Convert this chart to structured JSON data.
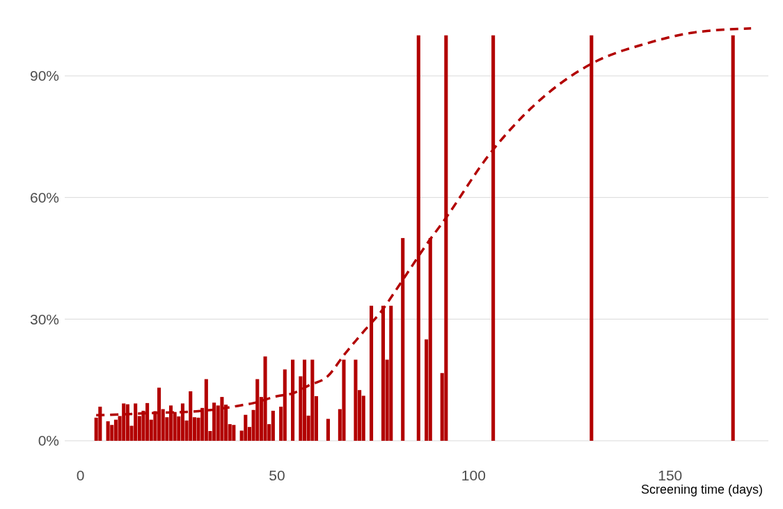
{
  "chart_data": {
    "type": "bar",
    "xlabel": "Screening time (days)",
    "xlim": [
      -4,
      175
    ],
    "xticks": [
      0,
      50,
      100,
      150
    ],
    "ylim": [
      0,
      107
    ],
    "yticks": [
      {
        "value": 0,
        "label": "0%"
      },
      {
        "value": 30,
        "label": "30%"
      },
      {
        "value": 60,
        "label": "60%"
      },
      {
        "value": 90,
        "label": "90%"
      }
    ],
    "grid": "y",
    "series": [
      {
        "color": "#b20000",
        "x": [
          4,
          5,
          7,
          8,
          9,
          10,
          11,
          12,
          13,
          14,
          15,
          16,
          17,
          18,
          19,
          20,
          21,
          22,
          23,
          24,
          25,
          26,
          27,
          28,
          29,
          30,
          31,
          32,
          33,
          34,
          35,
          36,
          37,
          38,
          39,
          41,
          42,
          43,
          44,
          45,
          46,
          47,
          48,
          49,
          51,
          52,
          54,
          56,
          57,
          58,
          59,
          60,
          63,
          66,
          67,
          70,
          71,
          72,
          74,
          77,
          78,
          79,
          82,
          86,
          88,
          89,
          92,
          93,
          105,
          130,
          166
        ],
        "values": [
          5.7,
          8.4,
          4.8,
          3.9,
          5.2,
          6.1,
          9.2,
          9.0,
          3.7,
          9.2,
          6.1,
          7.4,
          9.3,
          5.2,
          7.3,
          13.1,
          7.8,
          5.8,
          8.7,
          7.1,
          6.0,
          9.2,
          5.0,
          12.2,
          5.8,
          5.7,
          8.1,
          15.2,
          2.4,
          9.4,
          8.7,
          10.8,
          8.9,
          4.1,
          3.9,
          2.5,
          6.4,
          3.4,
          7.6,
          15.2,
          10.8,
          20.8,
          4.1,
          7.4,
          8.4,
          17.6,
          20,
          15.9,
          20,
          6.2,
          20,
          11.0,
          5.4,
          7.8,
          20,
          20,
          12.5,
          11.1,
          33.3,
          33.3,
          20,
          33.3,
          50,
          100,
          25,
          50,
          16.7,
          100,
          100,
          100,
          100
        ]
      },
      {
        "type": "line",
        "color": "#b20000",
        "line_style": "dashed",
        "marker": "none",
        "x": [
          4,
          10,
          20,
          30,
          37,
          40,
          44,
          50,
          54,
          58,
          63,
          67,
          72,
          76.6,
          80.7,
          84,
          87.8,
          92.7,
          104,
          115.7,
          130,
          144,
          156,
          170.6
        ],
        "values": [
          6.3,
          6.5,
          6.9,
          7.3,
          8.1,
          8.6,
          9.3,
          11.0,
          11.7,
          13.6,
          16.0,
          21.1,
          26.9,
          32,
          37.8,
          42.6,
          48.1,
          54.6,
          70.6,
          83,
          93,
          98,
          100.7,
          101.7
        ]
      }
    ]
  }
}
